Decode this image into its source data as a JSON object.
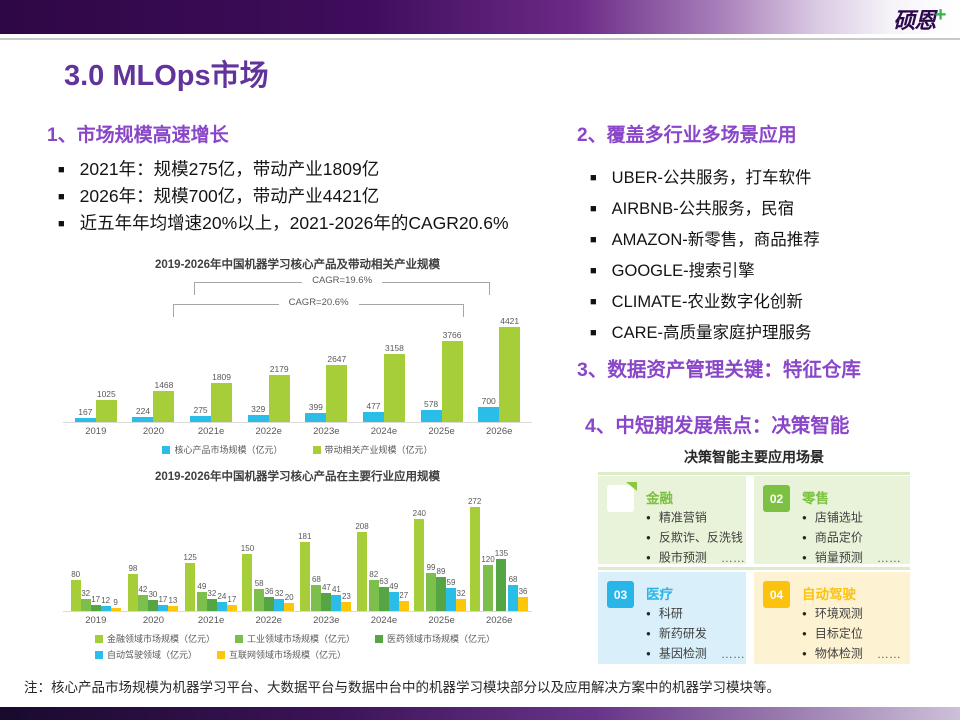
{
  "logo": {
    "text": "硕恩",
    "plus": "+"
  },
  "title": "3.0 MLOps市场",
  "sections": {
    "s1": {
      "heading": "1、市场规模高速增长",
      "bullets": [
        "2021年：规模275亿，带动产业1809亿",
        "2026年：规模700亿，带动产业4421亿",
        "近五年年均增速20%以上，2021-2026年的CAGR20.6%"
      ]
    },
    "s2": {
      "heading": "2、覆盖多行业多场景应用",
      "bullets": [
        "UBER-公共服务，打车软件",
        "AIRBNB-公共服务，民宿",
        "AMAZON-新零售，商品推荐",
        "GOOGLE-搜索引擎",
        "CLIMATE-农业数字化创新",
        "CARE-高质量家庭护理服务"
      ]
    },
    "s3": {
      "heading": "3、数据资产管理关键：特征仓库"
    },
    "s4": {
      "heading": "4、中短期发展焦点：决策智能"
    }
  },
  "chart_data": [
    {
      "type": "bar",
      "title": "2019-2026年中国机器学习核心产品及带动相关产业规模",
      "categories": [
        "2019",
        "2020",
        "2021e",
        "2022e",
        "2023e",
        "2024e",
        "2025e",
        "2026e"
      ],
      "series": [
        {
          "name": "核心产品市场规模（亿元）",
          "color": "#29bde8",
          "values": [
            167,
            224,
            275,
            329,
            399,
            477,
            578,
            700
          ]
        },
        {
          "name": "带动相关产业规模（亿元）",
          "color": "#a6ce39",
          "values": [
            1025,
            1468,
            1809,
            2179,
            2647,
            3158,
            3766,
            4421
          ]
        }
      ],
      "annotations": [
        {
          "label": "CAGR=19.6%"
        },
        {
          "label": "CAGR=20.6%"
        }
      ],
      "xlabel": "",
      "ylabel": "",
      "ylim": [
        0,
        4421
      ],
      "grid": false,
      "legend_position": "bottom"
    },
    {
      "type": "bar",
      "title": "2019-2026年中国机器学习核心产品在主要行业应用规模",
      "categories": [
        "2019",
        "2020",
        "2021e",
        "2022e",
        "2023e",
        "2024e",
        "2025e",
        "2026e"
      ],
      "series": [
        {
          "name": "金融领域市场规模（亿元）",
          "color": "#a6ce39",
          "values": [
            80,
            98,
            125,
            150,
            181,
            208,
            240,
            272
          ]
        },
        {
          "name": "工业领域市场规模（亿元）",
          "color": "#7cbf4d",
          "values": [
            32,
            42,
            49,
            58,
            68,
            82,
            99,
            120
          ]
        },
        {
          "name": "医药领域市场规模（亿元）",
          "color": "#56a544",
          "values": [
            17,
            30,
            32,
            36,
            47,
            63,
            89,
            135
          ]
        },
        {
          "name": "自动驾驶领域（亿元）",
          "color": "#29bde8",
          "values": [
            12,
            17,
            24,
            32,
            41,
            49,
            59,
            68
          ]
        },
        {
          "name": "互联网领域市场规模（亿元）",
          "color": "#fdc609",
          "values": [
            9,
            13,
            17,
            20,
            23,
            27,
            32,
            36
          ]
        }
      ],
      "xlabel": "",
      "ylabel": "",
      "ylim": [
        0,
        272
      ],
      "grid": false,
      "legend_position": "bottom"
    }
  ],
  "decision_grid": {
    "title": "决策智能主要应用场景",
    "cards": [
      {
        "num": "",
        "badge_style": "white",
        "name": "金融",
        "accent": "#7cc142",
        "bg": "#e9f3d9",
        "items": [
          "精准营销",
          "反欺诈、反洗钱",
          "股市预测"
        ],
        "more": "……"
      },
      {
        "num": "02",
        "name": "零售",
        "accent": "#7cc142",
        "bg": "#e9f3d9",
        "items": [
          "店铺选址",
          "商品定价",
          "销量预测"
        ],
        "more": "……"
      },
      {
        "num": "03",
        "name": "医疗",
        "accent": "#29b5e8",
        "bg": "#d9eff9",
        "items": [
          "科研",
          "新药研发",
          "基因检测"
        ],
        "more": "……"
      },
      {
        "num": "04",
        "name": "自动驾驶",
        "accent": "#fcc20e",
        "bg": "#fdf3d2",
        "items": [
          "环境观测",
          "目标定位",
          "物体检测"
        ],
        "more": "……"
      }
    ]
  },
  "note": "注：核心产品市场规模为机器学习平台、大数据平台与数据中台中的机器学习模块部分以及应用解决方案中的机器学习模块等。",
  "colors": {
    "title_purple": "#63339c",
    "heading_purple": "#8a46c8",
    "bar_blue": "#29bde8",
    "bar_green": "#a6ce39",
    "logo_plus_green": "#35b44a"
  }
}
